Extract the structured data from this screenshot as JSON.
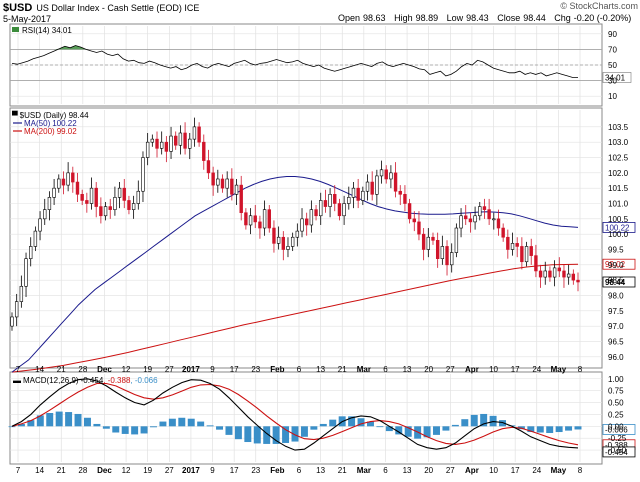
{
  "header": {
    "symbol": "$USD",
    "name": "US Dollar Index - Cash Settle (EOD) ICE",
    "date": "5-May-2017",
    "watermark": "© StockCharts.com",
    "ohlc": {
      "open_label": "Open",
      "open": "98.63",
      "high_label": "High",
      "high": "98.89",
      "low_label": "Low",
      "low": "98.43",
      "close_label": "Close",
      "close": "98.44",
      "chg_label": "Chg",
      "chg": "-0.20 (-0.20%)"
    }
  },
  "colors": {
    "up": "#ffffff",
    "down": "#d0142a",
    "ma50": "#1a1a8c",
    "ma200": "#cc1111",
    "macd": "#000000",
    "signal": "#cc1111",
    "hist": "#3a8fc8",
    "rsi_fill": "#3c8c3c"
  },
  "x_axis": {
    "labels": [
      "7",
      "14",
      "21",
      "28",
      "Dec",
      "12",
      "19",
      "27",
      "2017",
      "9",
      "17",
      "23",
      "Feb",
      "6",
      "13",
      "21",
      "Mar",
      "6",
      "13",
      "20",
      "27",
      "Apr",
      "10",
      "17",
      "24",
      "May",
      "8"
    ]
  },
  "chart_data": [
    {
      "type": "line",
      "title": "RSI(14) 34.01",
      "indicator": "RSI(14)",
      "last_value": "34.01",
      "ylim": [
        0,
        100
      ],
      "y_ticks": [
        "90",
        "70",
        "50",
        "30",
        "10"
      ],
      "reference_lines": [
        70,
        50,
        30
      ],
      "values": [
        52,
        51,
        53,
        55,
        58,
        60,
        62,
        65,
        68,
        71,
        74,
        72,
        75,
        73,
        70,
        68,
        66,
        68,
        64,
        62,
        64,
        58,
        55,
        56,
        53,
        52,
        55,
        53,
        50,
        48,
        46,
        48,
        44,
        46,
        50,
        52,
        48,
        46,
        50,
        52,
        50,
        48,
        52,
        54,
        56,
        52,
        50,
        52,
        53,
        55,
        57,
        55,
        53,
        54,
        56,
        52,
        50,
        48,
        50,
        46,
        44,
        42,
        44,
        46,
        48,
        50,
        52,
        50,
        48,
        52,
        54,
        50,
        48,
        50,
        52,
        50,
        48,
        45,
        44,
        38,
        40,
        42,
        36,
        38,
        42,
        48,
        52,
        50,
        56,
        54,
        50,
        46,
        44,
        42,
        40,
        40,
        42,
        38,
        40,
        38,
        40,
        36,
        38,
        40,
        38,
        36,
        34,
        34.01
      ]
    },
    {
      "type": "candlestick",
      "title": "$USD (Daily) 98.44",
      "series_label": "$USD (Daily)",
      "last_value": "98.44",
      "legend": [
        {
          "name": "MA(50)",
          "value": "100.22"
        },
        {
          "name": "MA(200)",
          "value": "99.02"
        }
      ],
      "ylim": [
        95.7,
        104.05
      ],
      "y_ticks": [
        "103.5",
        "103.0",
        "102.5",
        "102.0",
        "101.5",
        "101.0",
        "100.5",
        "100.0",
        "99.5",
        "99.0",
        "98.5",
        "98.0",
        "97.5",
        "97.0",
        "96.5",
        "96.0"
      ],
      "price_tags": [
        {
          "label": "100.22",
          "value": 100.22
        },
        {
          "label": "99.02",
          "value": 99.02
        },
        {
          "label": "98.44",
          "value": 98.44
        }
      ],
      "close": [
        97.3,
        97.8,
        98.3,
        99.2,
        99.6,
        100.1,
        100.5,
        100.8,
        101.2,
        101.5,
        101.8,
        101.6,
        102.0,
        101.7,
        101.3,
        101.1,
        101.0,
        101.5,
        100.9,
        100.6,
        100.9,
        100.8,
        101.2,
        101.5,
        101.1,
        100.8,
        101.0,
        101.4,
        102.5,
        103.0,
        103.1,
        102.8,
        103.0,
        102.7,
        103.2,
        102.9,
        103.3,
        102.8,
        103.1,
        103.5,
        103.0,
        102.4,
        102.0,
        101.6,
        101.8,
        101.5,
        101.8,
        101.3,
        101.6,
        100.7,
        100.3,
        100.6,
        100.4,
        100.2,
        100.8,
        100.2,
        99.7,
        99.9,
        99.5,
        99.6,
        99.9,
        100.1,
        100.5,
        100.3,
        100.8,
        100.6,
        101.1,
        100.9,
        101.3,
        101.0,
        100.6,
        101.0,
        101.2,
        101.5,
        101.1,
        101.4,
        101.7,
        101.3,
        101.9,
        102.1,
        101.8,
        102.0,
        101.4,
        101.3,
        101.0,
        100.5,
        100.4,
        100.0,
        99.5,
        99.9,
        99.8,
        99.2,
        99.6,
        99.0,
        99.4,
        100.2,
        100.6,
        100.5,
        100.4,
        100.6,
        100.9,
        100.8,
        100.5,
        100.5,
        100.2,
        99.9,
        99.5,
        99.7,
        99.6,
        99.1,
        99.6,
        99.3,
        98.8,
        98.6,
        98.8,
        98.6,
        98.9,
        98.8,
        98.6,
        98.7,
        98.5,
        98.44
      ],
      "ma50": [
        95.5,
        95.7,
        95.9,
        96.2,
        96.5,
        96.8,
        97.1,
        97.4,
        97.7,
        97.95,
        98.2,
        98.4,
        98.6,
        98.8,
        99.0,
        99.2,
        99.4,
        99.6,
        99.8,
        100.0,
        100.2,
        100.4,
        100.6,
        100.75,
        100.9,
        101.05,
        101.2,
        101.35,
        101.5,
        101.62,
        101.72,
        101.8,
        101.85,
        101.88,
        101.88,
        101.85,
        101.8,
        101.72,
        101.62,
        101.5,
        101.38,
        101.25,
        101.12,
        101.0,
        100.9,
        100.82,
        100.76,
        100.72,
        100.68,
        100.66,
        100.65,
        100.65,
        100.65,
        100.66,
        100.68,
        100.7,
        100.72,
        100.73,
        100.72,
        100.7,
        100.66,
        100.6,
        100.52,
        100.44,
        100.36,
        100.3,
        100.26,
        100.24,
        100.22
      ],
      "ma200": [
        95.5,
        95.55,
        95.6,
        95.66,
        95.72,
        95.8,
        95.88,
        95.96,
        96.05,
        96.14,
        96.24,
        96.34,
        96.44,
        96.54,
        96.64,
        96.74,
        96.84,
        96.94,
        97.04,
        97.13,
        97.22,
        97.31,
        97.4,
        97.49,
        97.58,
        97.67,
        97.76,
        97.85,
        97.94,
        98.03,
        98.12,
        98.21,
        98.3,
        98.39,
        98.48,
        98.56,
        98.64,
        98.72,
        98.8,
        98.87,
        98.93,
        98.97,
        99.0,
        99.01,
        99.02
      ]
    },
    {
      "type": "line",
      "title": "MACD(12,26,9) -0.454, -0.388, -0.066",
      "indicator": "MACD(12,26,9)",
      "values_text": [
        "-0.454",
        "-0.388",
        "-0.066"
      ],
      "ylim": [
        -0.75,
        1.1
      ],
      "y_ticks": [
        "1.00",
        "0.75",
        "0.50",
        "0.25",
        "0.00",
        "-0.25",
        "-0.50"
      ],
      "price_tags": [
        {
          "label": "-0.066",
          "value": -0.066
        },
        {
          "label": "-0.388",
          "value": -0.388
        },
        {
          "label": "-0.454",
          "value": -0.454
        }
      ],
      "macd": [
        0.0,
        0.1,
        0.25,
        0.45,
        0.62,
        0.78,
        0.9,
        0.98,
        1.0,
        0.95,
        0.85,
        0.72,
        0.6,
        0.5,
        0.45,
        0.55,
        0.7,
        0.82,
        0.92,
        0.98,
        0.97,
        0.9,
        0.78,
        0.6,
        0.4,
        0.2,
        0.02,
        -0.15,
        -0.3,
        -0.42,
        -0.5,
        -0.48,
        -0.35,
        -0.2,
        -0.05,
        0.1,
        0.18,
        0.22,
        0.2,
        0.12,
        0.0,
        -0.12,
        -0.25,
        -0.38,
        -0.45,
        -0.48,
        -0.45,
        -0.35,
        -0.2,
        -0.05,
        0.05,
        0.1,
        0.08,
        0.0,
        -0.1,
        -0.22,
        -0.3,
        -0.38,
        -0.42,
        -0.44,
        -0.454
      ],
      "signal": [
        0.0,
        0.05,
        0.12,
        0.22,
        0.34,
        0.47,
        0.6,
        0.72,
        0.82,
        0.9,
        0.9,
        0.85,
        0.76,
        0.67,
        0.6,
        0.57,
        0.6,
        0.66,
        0.74,
        0.82,
        0.87,
        0.88,
        0.85,
        0.78,
        0.67,
        0.53,
        0.38,
        0.22,
        0.07,
        -0.07,
        -0.18,
        -0.26,
        -0.28,
        -0.25,
        -0.19,
        -0.11,
        -0.03,
        0.05,
        0.1,
        0.12,
        0.1,
        0.05,
        -0.03,
        -0.12,
        -0.22,
        -0.3,
        -0.36,
        -0.38,
        -0.35,
        -0.29,
        -0.21,
        -0.12,
        -0.05,
        -0.02,
        -0.04,
        -0.1,
        -0.17,
        -0.24,
        -0.3,
        -0.35,
        -0.388
      ],
      "histogram": [
        0.0,
        0.05,
        0.13,
        0.23,
        0.28,
        0.31,
        0.3,
        0.26,
        0.18,
        0.05,
        -0.05,
        -0.13,
        -0.16,
        -0.17,
        -0.15,
        -0.02,
        0.1,
        0.16,
        0.18,
        0.16,
        0.1,
        0.02,
        -0.07,
        -0.18,
        -0.27,
        -0.33,
        -0.36,
        -0.37,
        -0.37,
        -0.35,
        -0.32,
        -0.22,
        -0.07,
        0.05,
        0.14,
        0.21,
        0.21,
        0.17,
        0.1,
        0.0,
        -0.1,
        -0.17,
        -0.22,
        -0.26,
        -0.23,
        -0.18,
        -0.09,
        0.03,
        0.15,
        0.24,
        0.26,
        0.22,
        0.13,
        0.02,
        -0.06,
        -0.12,
        -0.13,
        -0.14,
        -0.12,
        -0.09,
        -0.066
      ]
    }
  ]
}
